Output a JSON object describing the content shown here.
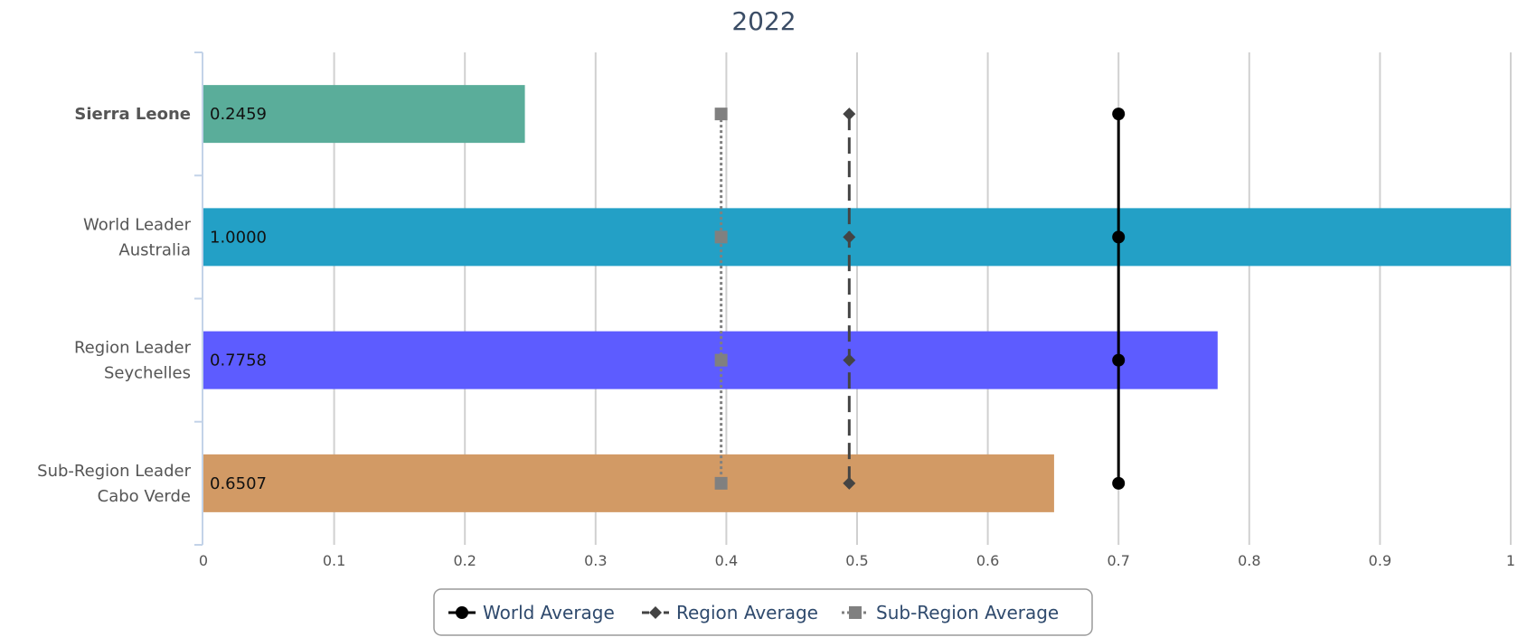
{
  "chart_data": {
    "type": "bar",
    "orientation": "horizontal",
    "title": "2022",
    "categories": [
      {
        "lines": [
          "Sierra Leone"
        ],
        "bold": true
      },
      {
        "lines": [
          "World Leader",
          "Australia"
        ],
        "bold": false
      },
      {
        "lines": [
          "Region Leader",
          "Seychelles"
        ],
        "bold": false
      },
      {
        "lines": [
          "Sub-Region Leader",
          "Cabo Verde"
        ],
        "bold": false
      }
    ],
    "values": [
      0.2459,
      1.0,
      0.7758,
      0.6507
    ],
    "value_labels": [
      "0.2459",
      "1.0000",
      "0.7758",
      "0.6507"
    ],
    "bar_colors": [
      "#5aad9a",
      "#23a0c6",
      "#5d5cff",
      "#d29a65"
    ],
    "xlim": [
      0,
      1
    ],
    "x_ticks": [
      0,
      0.1,
      0.2,
      0.3,
      0.4,
      0.5,
      0.6,
      0.7,
      0.8,
      0.9,
      1
    ],
    "x_tick_labels": [
      "0",
      "0.1",
      "0.2",
      "0.3",
      "0.4",
      "0.5",
      "0.6",
      "0.7",
      "0.8",
      "0.9",
      "1"
    ],
    "grid": true,
    "series": [
      {
        "name": "World Average",
        "value": 0.7,
        "color": "#000000",
        "marker": "circle",
        "line": "solid"
      },
      {
        "name": "Region Average",
        "value": 0.494,
        "color": "#444444",
        "marker": "diamond",
        "line": "dashed"
      },
      {
        "name": "Sub-Region Average",
        "value": 0.396,
        "color": "#808080",
        "marker": "square",
        "line": "dotted"
      }
    ],
    "legend": "bottom"
  }
}
